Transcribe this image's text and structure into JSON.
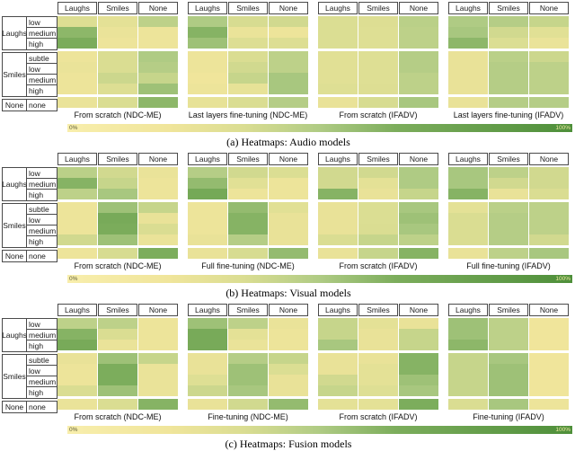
{
  "chart_data": {
    "type": "heatmap",
    "columns": [
      "Laughs",
      "Smiles",
      "None"
    ],
    "row_groups": [
      {
        "label": "Laughs",
        "levels": [
          "low",
          "medium",
          "high"
        ]
      },
      {
        "label": "Smiles",
        "levels": [
          "subtle",
          "low",
          "medium",
          "high"
        ]
      },
      {
        "label": "None",
        "levels": [
          "none"
        ]
      }
    ],
    "unit": "percent",
    "scale": {
      "min": 0,
      "max": 100,
      "min_label": "0%",
      "max_label": "100%"
    },
    "legend_position": "bottom",
    "colormap": [
      {
        "pos": 0,
        "color": "#F8EEAC"
      },
      {
        "pos": 20,
        "color": "#F0E59B"
      },
      {
        "pos": 35,
        "color": "#DADD92"
      },
      {
        "pos": 50,
        "color": "#AFCB84"
      },
      {
        "pos": 65,
        "color": "#7CAD5C"
      },
      {
        "pos": 100,
        "color": "#4E8F3A"
      }
    ],
    "sections": [
      {
        "id": "a",
        "caption": "(a) Heatmaps: Audio models",
        "heatmaps": [
          {
            "title": "From scratch (NDC-ME)",
            "values": [
              [
                33,
                28,
                45
              ],
              [
                60,
                24,
                22
              ],
              [
                66,
                22,
                22
              ],
              [
                22,
                35,
                50
              ],
              [
                24,
                35,
                48
              ],
              [
                22,
                40,
                42
              ],
              [
                22,
                33,
                55
              ],
              [
                24,
                35,
                60
              ]
            ]
          },
          {
            "title": "Last layers fine-tuning (NDC-ME)",
            "values": [
              [
                50,
                36,
                38
              ],
              [
                62,
                24,
                22
              ],
              [
                55,
                33,
                33
              ],
              [
                22,
                35,
                45
              ],
              [
                22,
                38,
                45
              ],
              [
                20,
                42,
                52
              ],
              [
                22,
                26,
                52
              ],
              [
                26,
                35,
                48
              ]
            ]
          },
          {
            "title": "From scratch (IFADV)",
            "values": [
              [
                34,
                33,
                46
              ],
              [
                34,
                32,
                45
              ],
              [
                34,
                32,
                45
              ],
              [
                30,
                32,
                48
              ],
              [
                30,
                32,
                48
              ],
              [
                30,
                32,
                45
              ],
              [
                32,
                33,
                45
              ],
              [
                25,
                36,
                52
              ]
            ]
          },
          {
            "title": "Last layers fine-tuning (IFADV)",
            "values": [
              [
                50,
                48,
                42
              ],
              [
                52,
                38,
                30
              ],
              [
                60,
                34,
                24
              ],
              [
                25,
                46,
                40
              ],
              [
                25,
                48,
                45
              ],
              [
                25,
                48,
                45
              ],
              [
                25,
                48,
                45
              ],
              [
                25,
                48,
                48
              ]
            ]
          }
        ]
      },
      {
        "id": "b",
        "caption": "(b) Heatmaps: Visual models",
        "heatmaps": [
          {
            "title": "From scratch (NDC-ME)",
            "values": [
              [
                46,
                38,
                24
              ],
              [
                62,
                42,
                22
              ],
              [
                45,
                52,
                22
              ],
              [
                22,
                55,
                42
              ],
              [
                22,
                68,
                25
              ],
              [
                22,
                66,
                35
              ],
              [
                38,
                55,
                24
              ],
              [
                22,
                36,
                65
              ]
            ]
          },
          {
            "title": "Full fine-tuning (NDC-ME)",
            "values": [
              [
                48,
                38,
                34
              ],
              [
                58,
                30,
                22
              ],
              [
                70,
                22,
                22
              ],
              [
                22,
                58,
                30
              ],
              [
                22,
                62,
                25
              ],
              [
                22,
                62,
                25
              ],
              [
                25,
                48,
                25
              ],
              [
                25,
                36,
                58
              ]
            ]
          },
          {
            "title": "From scratch (IFADV)",
            "values": [
              [
                38,
                38,
                50
              ],
              [
                38,
                28,
                50
              ],
              [
                62,
                25,
                42
              ],
              [
                25,
                34,
                52
              ],
              [
                25,
                34,
                55
              ],
              [
                25,
                35,
                52
              ],
              [
                35,
                42,
                45
              ],
              [
                25,
                42,
                62
              ]
            ]
          },
          {
            "title": "Full fine-tuning (IFADV)",
            "values": [
              [
                52,
                45,
                38
              ],
              [
                52,
                38,
                38
              ],
              [
                62,
                25,
                35
              ],
              [
                28,
                46,
                45
              ],
              [
                35,
                48,
                45
              ],
              [
                35,
                48,
                45
              ],
              [
                35,
                48,
                38
              ],
              [
                25,
                45,
                52
              ]
            ]
          }
        ]
      },
      {
        "id": "c",
        "caption": "(c) Heatmaps: Fusion models",
        "heatmaps": [
          {
            "title": "From scratch (NDC-ME)",
            "values": [
              [
                45,
                45,
                22
              ],
              [
                62,
                35,
                22
              ],
              [
                68,
                24,
                22
              ],
              [
                25,
                55,
                42
              ],
              [
                22,
                65,
                24
              ],
              [
                22,
                65,
                24
              ],
              [
                35,
                55,
                24
              ],
              [
                24,
                35,
                62
              ]
            ]
          },
          {
            "title": "Fine-tuning (NDC-ME)",
            "values": [
              [
                55,
                45,
                24
              ],
              [
                68,
                28,
                22
              ],
              [
                68,
                24,
                22
              ],
              [
                25,
                48,
                42
              ],
              [
                25,
                55,
                34
              ],
              [
                32,
                55,
                25
              ],
              [
                40,
                52,
                25
              ],
              [
                25,
                38,
                58
              ]
            ]
          },
          {
            "title": "From scratch (IFADV)",
            "values": [
              [
                42,
                28,
                25
              ],
              [
                42,
                25,
                42
              ],
              [
                52,
                25,
                42
              ],
              [
                25,
                25,
                62
              ],
              [
                25,
                28,
                62
              ],
              [
                38,
                28,
                55
              ],
              [
                42,
                32,
                52
              ],
              [
                28,
                28,
                65
              ]
            ]
          },
          {
            "title": "Fine-tuning (IFADV)",
            "values": [
              [
                55,
                45,
                20
              ],
              [
                55,
                45,
                20
              ],
              [
                60,
                45,
                20
              ],
              [
                42,
                52,
                20
              ],
              [
                42,
                55,
                20
              ],
              [
                42,
                55,
                20
              ],
              [
                42,
                55,
                20
              ],
              [
                35,
                52,
                22
              ]
            ]
          }
        ]
      }
    ]
  }
}
